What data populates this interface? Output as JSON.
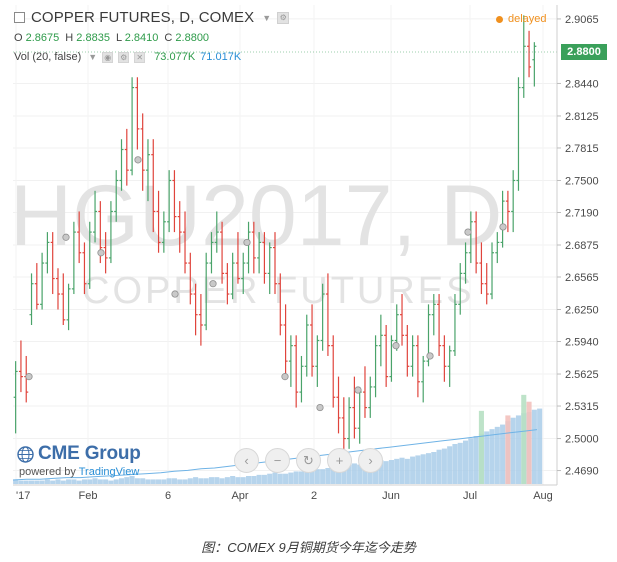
{
  "header": {
    "symbol_title": "COPPER FUTURES, D, COMEX",
    "ohlc": {
      "o_label": "O",
      "o": "2.8675",
      "h_label": "H",
      "h": "2.8835",
      "l_label": "L",
      "l": "2.8410",
      "c_label": "C",
      "c": "2.8800"
    },
    "volume": {
      "label": "Vol (20, false)",
      "value_green": "73.077K",
      "value_blue": "71.017K"
    },
    "status": "delayed"
  },
  "watermark": {
    "line1": "HGU2017, D",
    "line2": "COPPER FUTURES"
  },
  "branding": {
    "logo_text": "CME Group",
    "powered_prefix": "powered by ",
    "powered_brand": "TradingView"
  },
  "nav": {
    "scroll_left": "‹",
    "zoom_out": "−",
    "reset": "↻",
    "zoom_in": "+",
    "scroll_right": "›"
  },
  "colors": {
    "up": "#4aa36a",
    "down": "#e0443c",
    "volume": "#a9cde9",
    "volume_up": "#b7e0c3",
    "volume_down": "#f3c1bd",
    "last_price": "#3aa05a",
    "delayed": "#f0901e"
  },
  "caption": "图：COMEX 9月铜期货今年迄今走势",
  "chart_data": {
    "type": "ohlc",
    "title": "COPPER FUTURES, D, COMEX",
    "y_ticks": [
      "2.9065",
      "2.8440",
      "2.8125",
      "2.7815",
      "2.7500",
      "2.7190",
      "2.6875",
      "2.6565",
      "2.6250",
      "2.5940",
      "2.5625",
      "2.5315",
      "2.5000",
      "2.4690"
    ],
    "x_ticks": [
      "'17",
      "Feb",
      "6",
      "Apr",
      "2",
      "Jun",
      "Jul",
      "Aug"
    ],
    "ylim": [
      2.455,
      2.92
    ],
    "last_price": "2.8800",
    "bars": [
      [
        2.54,
        2.575,
        2.505,
        2.565
      ],
      [
        2.565,
        2.595,
        2.545,
        2.56
      ],
      [
        2.56,
        2.58,
        2.535,
        2.545
      ],
      [
        2.62,
        2.66,
        2.61,
        2.65
      ],
      [
        2.65,
        2.67,
        2.625,
        2.63
      ],
      [
        2.63,
        2.68,
        2.625,
        2.67
      ],
      [
        2.67,
        2.7,
        2.66,
        2.69
      ],
      [
        2.69,
        2.7,
        2.64,
        2.655
      ],
      [
        2.655,
        2.665,
        2.625,
        2.64
      ],
      [
        2.64,
        2.66,
        2.61,
        2.615
      ],
      [
        2.615,
        2.65,
        2.605,
        2.645
      ],
      [
        2.645,
        2.71,
        2.64,
        2.7
      ],
      [
        2.7,
        2.72,
        2.67,
        2.68
      ],
      [
        2.68,
        2.69,
        2.64,
        2.65
      ],
      [
        2.65,
        2.71,
        2.645,
        2.7
      ],
      [
        2.7,
        2.74,
        2.69,
        2.72
      ],
      [
        2.72,
        2.73,
        2.67,
        2.685
      ],
      [
        2.685,
        2.7,
        2.66,
        2.675
      ],
      [
        2.675,
        2.73,
        2.67,
        2.72
      ],
      [
        2.72,
        2.76,
        2.71,
        2.75
      ],
      [
        2.75,
        2.79,
        2.74,
        2.78
      ],
      [
        2.78,
        2.8,
        2.745,
        2.76
      ],
      [
        2.76,
        2.85,
        2.755,
        2.84
      ],
      [
        2.84,
        2.85,
        2.78,
        2.8
      ],
      [
        2.8,
        2.815,
        2.74,
        2.76
      ],
      [
        2.76,
        2.79,
        2.73,
        2.775
      ],
      [
        2.775,
        2.79,
        2.7,
        2.72
      ],
      [
        2.72,
        2.74,
        2.68,
        2.69
      ],
      [
        2.69,
        2.72,
        2.68,
        2.71
      ],
      [
        2.71,
        2.76,
        2.7,
        2.75
      ],
      [
        2.75,
        2.76,
        2.7,
        2.715
      ],
      [
        2.715,
        2.73,
        2.68,
        2.7
      ],
      [
        2.7,
        2.72,
        2.66,
        2.67
      ],
      [
        2.67,
        2.68,
        2.63,
        2.64
      ],
      [
        2.64,
        2.65,
        2.6,
        2.62
      ],
      [
        2.62,
        2.64,
        2.59,
        2.61
      ],
      [
        2.61,
        2.68,
        2.605,
        2.67
      ],
      [
        2.67,
        2.7,
        2.66,
        2.69
      ],
      [
        2.69,
        2.72,
        2.68,
        2.7
      ],
      [
        2.7,
        2.71,
        2.65,
        2.66
      ],
      [
        2.66,
        2.67,
        2.63,
        2.64
      ],
      [
        2.64,
        2.68,
        2.635,
        2.67
      ],
      [
        2.67,
        2.7,
        2.65,
        2.655
      ],
      [
        2.655,
        2.68,
        2.64,
        2.67
      ],
      [
        2.67,
        2.71,
        2.66,
        2.7
      ],
      [
        2.7,
        2.71,
        2.66,
        2.675
      ],
      [
        2.675,
        2.7,
        2.66,
        2.69
      ],
      [
        2.69,
        2.7,
        2.65,
        2.66
      ],
      [
        2.66,
        2.69,
        2.64,
        2.685
      ],
      [
        2.685,
        2.7,
        2.64,
        2.65
      ],
      [
        2.65,
        2.66,
        2.6,
        2.61
      ],
      [
        2.61,
        2.63,
        2.56,
        2.575
      ],
      [
        2.575,
        2.6,
        2.55,
        2.59
      ],
      [
        2.59,
        2.6,
        2.53,
        2.545
      ],
      [
        2.545,
        2.58,
        2.535,
        2.57
      ],
      [
        2.57,
        2.62,
        2.56,
        2.61
      ],
      [
        2.61,
        2.63,
        2.56,
        2.57
      ],
      [
        2.57,
        2.6,
        2.55,
        2.595
      ],
      [
        2.595,
        2.65,
        2.585,
        2.64
      ],
      [
        2.64,
        2.66,
        2.58,
        2.59
      ],
      [
        2.59,
        2.6,
        2.53,
        2.54
      ],
      [
        2.54,
        2.56,
        2.505,
        2.52
      ],
      [
        2.52,
        2.54,
        2.48,
        2.5
      ],
      [
        2.5,
        2.54,
        2.49,
        2.53
      ],
      [
        2.53,
        2.56,
        2.5,
        2.51
      ],
      [
        2.51,
        2.55,
        2.495,
        2.545
      ],
      [
        2.545,
        2.57,
        2.52,
        2.53
      ],
      [
        2.53,
        2.56,
        2.52,
        2.55
      ],
      [
        2.55,
        2.6,
        2.54,
        2.59
      ],
      [
        2.59,
        2.62,
        2.57,
        2.6
      ],
      [
        2.6,
        2.61,
        2.55,
        2.56
      ],
      [
        2.56,
        2.6,
        2.555,
        2.595
      ],
      [
        2.595,
        2.63,
        2.585,
        2.62
      ],
      [
        2.62,
        2.64,
        2.59,
        2.6
      ],
      [
        2.6,
        2.61,
        2.56,
        2.57
      ],
      [
        2.57,
        2.6,
        2.56,
        2.59
      ],
      [
        2.59,
        2.6,
        2.54,
        2.555
      ],
      [
        2.555,
        2.58,
        2.535,
        2.575
      ],
      [
        2.575,
        2.63,
        2.57,
        2.62
      ],
      [
        2.62,
        2.64,
        2.6,
        2.63
      ],
      [
        2.63,
        2.64,
        2.58,
        2.59
      ],
      [
        2.59,
        2.6,
        2.555,
        2.57
      ],
      [
        2.57,
        2.59,
        2.55,
        2.585
      ],
      [
        2.585,
        2.64,
        2.58,
        2.63
      ],
      [
        2.63,
        2.67,
        2.62,
        2.66
      ],
      [
        2.66,
        2.69,
        2.65,
        2.68
      ],
      [
        2.68,
        2.72,
        2.67,
        2.71
      ],
      [
        2.71,
        2.72,
        2.66,
        2.67
      ],
      [
        2.67,
        2.69,
        2.64,
        2.65
      ],
      [
        2.65,
        2.67,
        2.63,
        2.64
      ],
      [
        2.64,
        2.69,
        2.635,
        2.68
      ],
      [
        2.68,
        2.7,
        2.67,
        2.69
      ],
      [
        2.69,
        2.74,
        2.685,
        2.73
      ],
      [
        2.73,
        2.74,
        2.7,
        2.72
      ],
      [
        2.72,
        2.76,
        2.7,
        2.75
      ],
      [
        2.75,
        2.85,
        2.74,
        2.84
      ],
      [
        2.84,
        2.91,
        2.83,
        2.88
      ],
      [
        2.88,
        2.895,
        2.85,
        2.86
      ],
      [
        2.867,
        2.884,
        2.841,
        2.88
      ]
    ],
    "volume": [
      4,
      3,
      3,
      3,
      3,
      3,
      4,
      3,
      4,
      3,
      4,
      4,
      3,
      4,
      4,
      5,
      4,
      4,
      3,
      4,
      5,
      6,
      7,
      5,
      5,
      4,
      4,
      4,
      4,
      5,
      5,
      4,
      4,
      5,
      6,
      5,
      5,
      6,
      6,
      5,
      6,
      7,
      6,
      6,
      7,
      7,
      8,
      8,
      9,
      10,
      9,
      9,
      10,
      11,
      11,
      12,
      12,
      13,
      13,
      14,
      15,
      16,
      15,
      17,
      18,
      17,
      18,
      19,
      20,
      21,
      20,
      21,
      22,
      23,
      22,
      24,
      25,
      26,
      27,
      28,
      30,
      31,
      33,
      35,
      36,
      38,
      40,
      42,
      44,
      46,
      48,
      50,
      52,
      55,
      58,
      60,
      62,
      63,
      65,
      66
    ],
    "volume_max": 70,
    "volume_spikes": [
      [
        88,
        64
      ],
      [
        93,
        60
      ],
      [
        96,
        78
      ],
      [
        97,
        72
      ]
    ],
    "ma_points": [
      0.05,
      0.06,
      0.06,
      0.07,
      0.08,
      0.08,
      0.09,
      0.1,
      0.11,
      0.12,
      0.13,
      0.14,
      0.16,
      0.17,
      0.19,
      0.2,
      0.22,
      0.24,
      0.26,
      0.28,
      0.3,
      0.32,
      0.34,
      0.36,
      0.38,
      0.4,
      0.42,
      0.44,
      0.46,
      0.48,
      0.5,
      0.52,
      0.54,
      0.56,
      0.58,
      0.6,
      0.62,
      0.64,
      0.66,
      0.68
    ],
    "markers": [
      [
        3,
        2.56
      ],
      [
        14,
        2.695
      ],
      [
        23,
        2.68
      ],
      [
        34,
        2.77
      ],
      [
        49,
        2.64
      ],
      [
        60,
        2.65
      ],
      [
        68,
        2.69
      ],
      [
        80,
        2.56
      ],
      [
        93,
        2.53
      ],
      [
        103,
        2.547
      ],
      [
        117,
        2.59
      ],
      [
        128,
        2.58
      ],
      [
        139,
        2.7
      ],
      [
        151,
        2.705
      ]
    ]
  }
}
